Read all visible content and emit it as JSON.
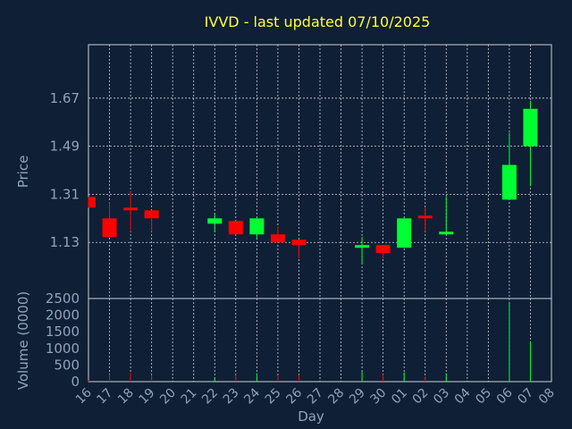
{
  "chart_data": {
    "type": "candlestick",
    "title": "IVVD - last updated 07/10/2025",
    "xlabel": "Day",
    "colors": {
      "background": "#0f1f35",
      "up": "#00ff33",
      "down": "#ff0000",
      "title": "#ffff33",
      "text": "#8fa3be",
      "grid": "#c8d0dc"
    },
    "days": [
      "16",
      "17",
      "18",
      "19",
      "20",
      "21",
      "22",
      "23",
      "24",
      "25",
      "26",
      "27",
      "28",
      "29",
      "30",
      "01",
      "02",
      "03",
      "04",
      "05",
      "06",
      "07",
      "08"
    ],
    "price": {
      "ylabel": "Price",
      "ylim": [
        0.92,
        1.87
      ],
      "ticks": [
        "1.13",
        "1.31",
        "1.49",
        "1.67"
      ],
      "tick_values": [
        1.13,
        1.31,
        1.49,
        1.67
      ],
      "candles": [
        {
          "day": "16",
          "open": 1.3,
          "close": 1.26,
          "high": 1.3,
          "low": 1.26
        },
        {
          "day": "17",
          "open": 1.22,
          "close": 1.15,
          "high": 1.28,
          "low": 1.15
        },
        {
          "day": "18",
          "open": 1.26,
          "close": 1.25,
          "high": 1.32,
          "low": 1.17
        },
        {
          "day": "19",
          "open": 1.25,
          "close": 1.22,
          "high": 1.25,
          "low": 1.17
        },
        {
          "day": "22",
          "open": 1.2,
          "close": 1.22,
          "high": 1.24,
          "low": 1.17
        },
        {
          "day": "23",
          "open": 1.21,
          "close": 1.16,
          "high": 1.21,
          "low": 1.16
        },
        {
          "day": "24",
          "open": 1.16,
          "close": 1.22,
          "high": 1.22,
          "low": 1.14
        },
        {
          "day": "25",
          "open": 1.16,
          "close": 1.13,
          "high": 1.19,
          "low": 1.13
        },
        {
          "day": "26",
          "open": 1.14,
          "close": 1.12,
          "high": 1.14,
          "low": 1.07
        },
        {
          "day": "29",
          "open": 1.11,
          "close": 1.12,
          "high": 1.15,
          "low": 1.05
        },
        {
          "day": "30",
          "open": 1.12,
          "close": 1.09,
          "high": 1.12,
          "low": 1.07
        },
        {
          "day": "01",
          "open": 1.11,
          "close": 1.22,
          "high": 1.22,
          "low": 1.11
        },
        {
          "day": "02",
          "open": 1.23,
          "close": 1.22,
          "high": 1.26,
          "low": 1.17
        },
        {
          "day": "03",
          "open": 1.16,
          "close": 1.17,
          "high": 1.3,
          "low": 1.16
        },
        {
          "day": "06",
          "open": 1.29,
          "close": 1.42,
          "high": 1.54,
          "low": 1.29
        },
        {
          "day": "07",
          "open": 1.49,
          "close": 1.63,
          "high": 1.66,
          "low": 1.34
        }
      ]
    },
    "volume": {
      "ylabel": "Volume (0000)",
      "ylim": [
        0,
        2500
      ],
      "ticks": [
        "0",
        "500",
        "1000",
        "1500",
        "2000",
        "2500"
      ],
      "tick_values": [
        0,
        500,
        1000,
        1500,
        2000,
        2500
      ],
      "bars": [
        {
          "day": "16",
          "value": 40,
          "dir": "down"
        },
        {
          "day": "17",
          "value": 220,
          "dir": "down"
        },
        {
          "day": "18",
          "value": 260,
          "dir": "down"
        },
        {
          "day": "19",
          "value": 200,
          "dir": "down"
        },
        {
          "day": "22",
          "value": 120,
          "dir": "up"
        },
        {
          "day": "23",
          "value": 200,
          "dir": "down"
        },
        {
          "day": "24",
          "value": 250,
          "dir": "up"
        },
        {
          "day": "25",
          "value": 180,
          "dir": "down"
        },
        {
          "day": "26",
          "value": 200,
          "dir": "down"
        },
        {
          "day": "29",
          "value": 300,
          "dir": "up"
        },
        {
          "day": "30",
          "value": 220,
          "dir": "down"
        },
        {
          "day": "01",
          "value": 280,
          "dir": "up"
        },
        {
          "day": "02",
          "value": 150,
          "dir": "down"
        },
        {
          "day": "03",
          "value": 250,
          "dir": "up"
        },
        {
          "day": "06",
          "value": 2400,
          "dir": "up"
        },
        {
          "day": "07",
          "value": 1200,
          "dir": "up"
        }
      ]
    }
  }
}
